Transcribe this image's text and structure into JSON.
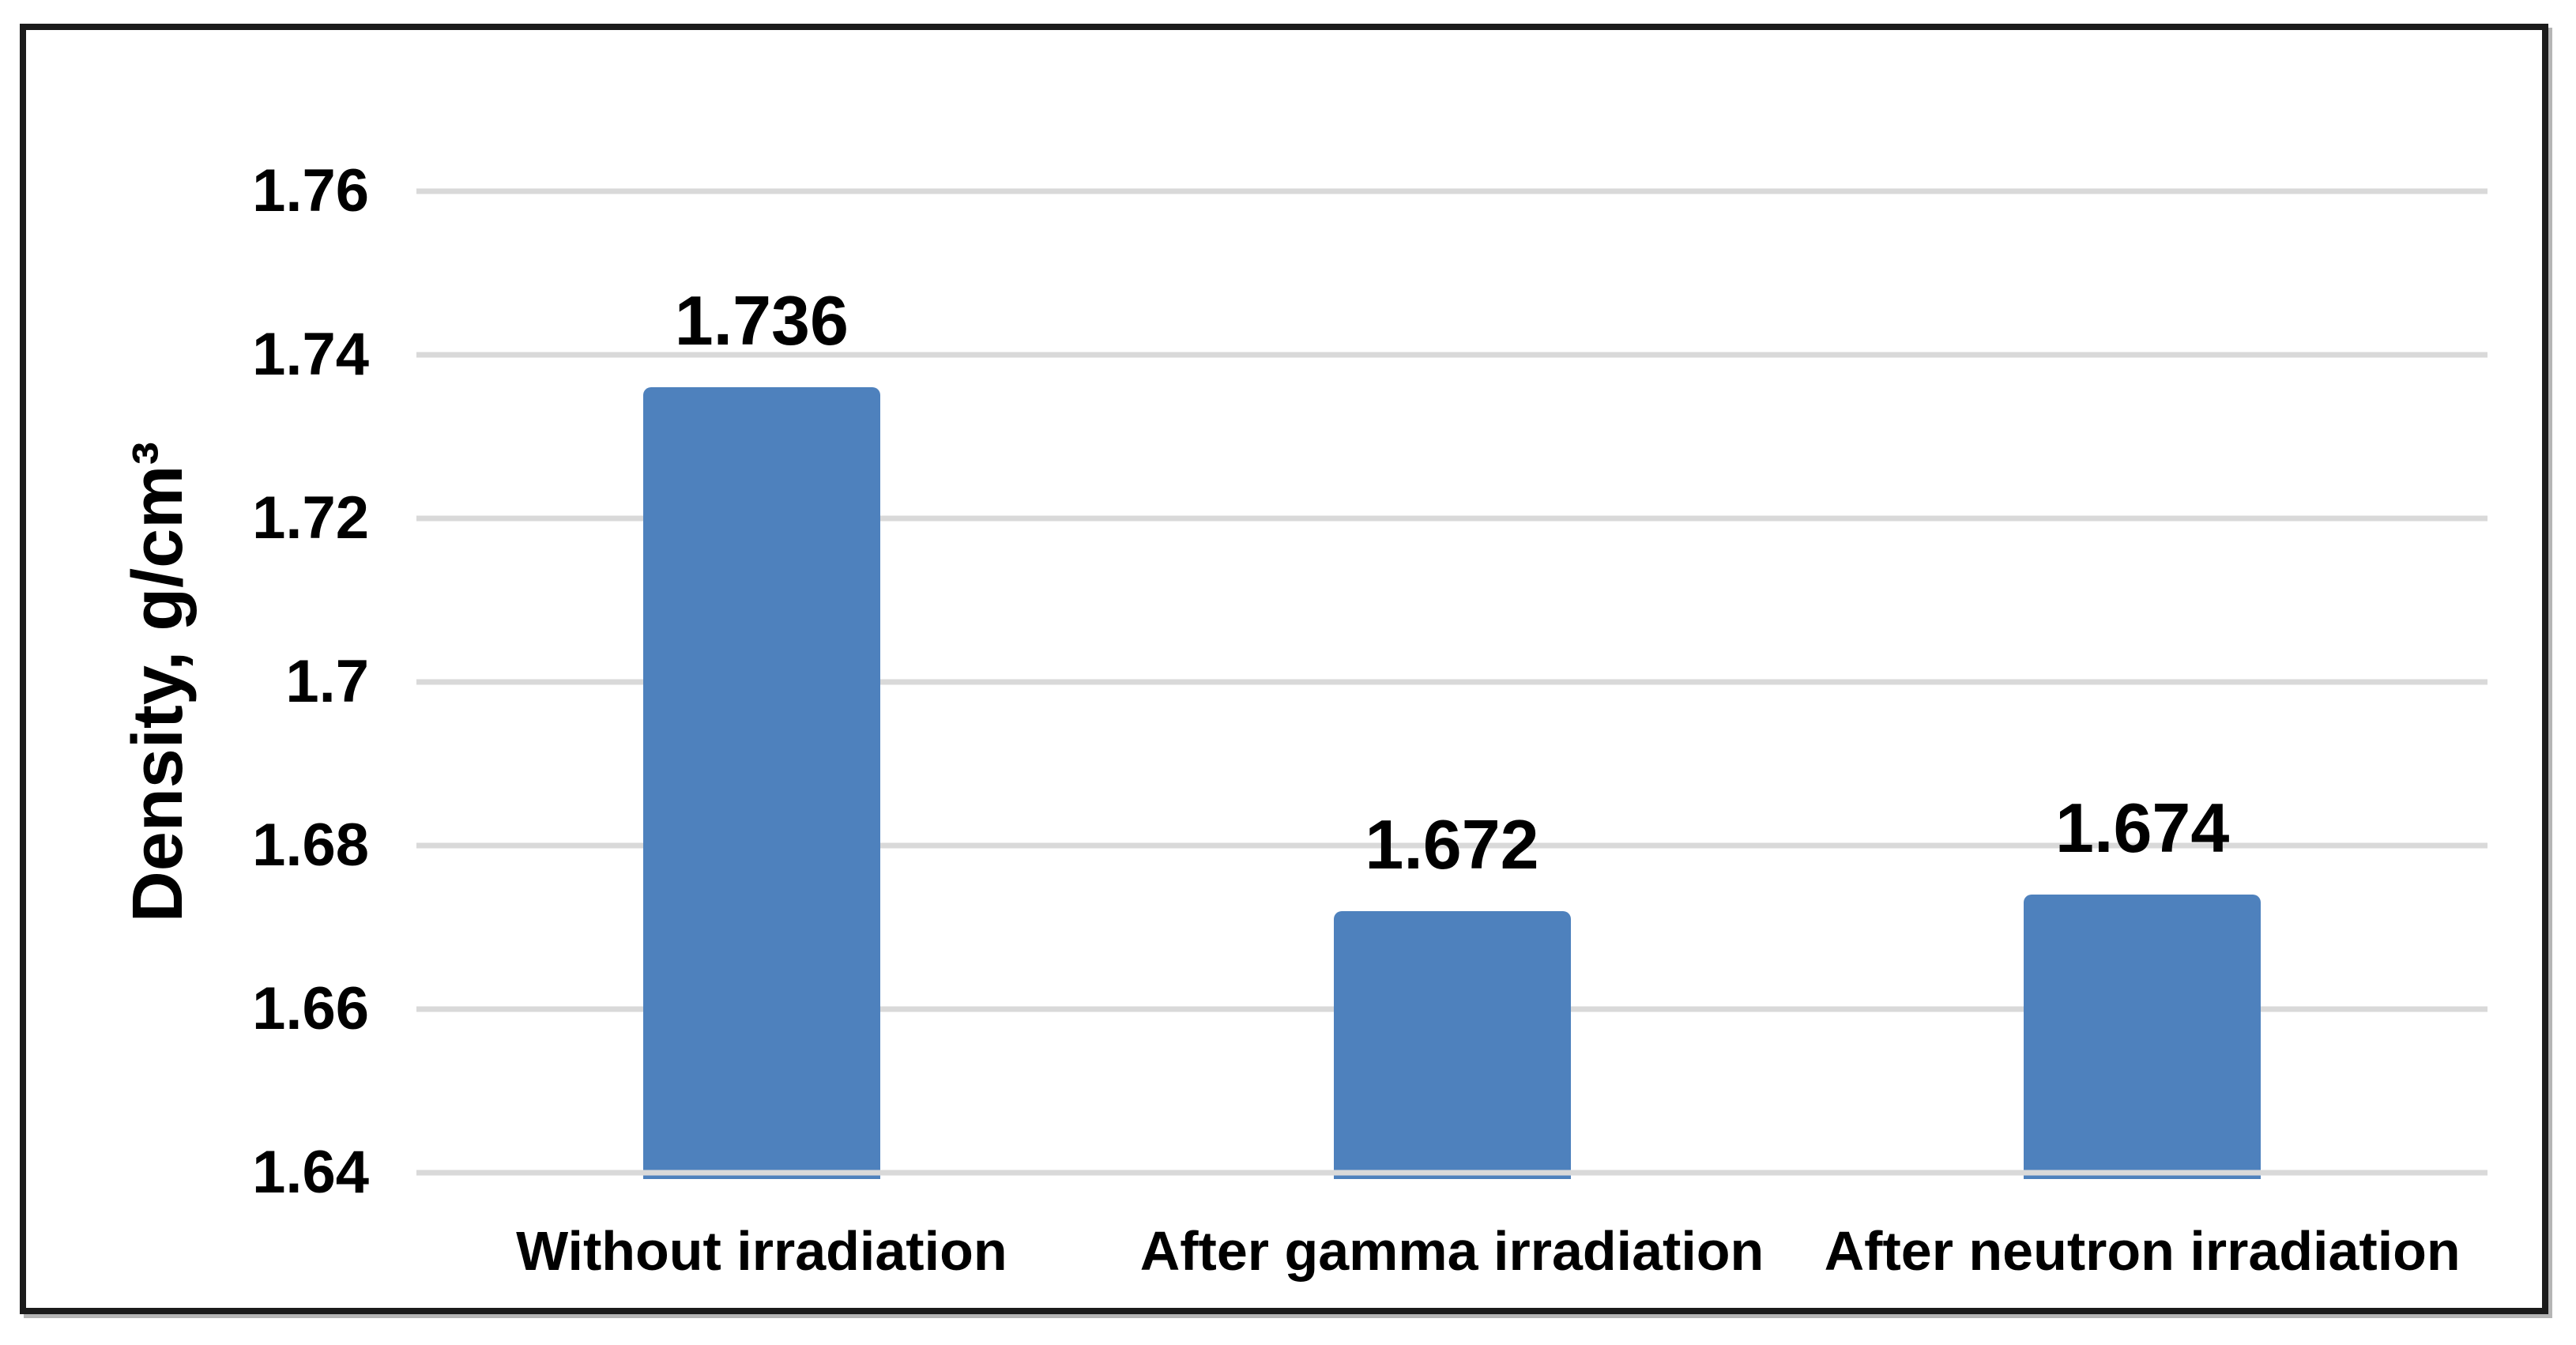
{
  "chart_data": {
    "type": "bar",
    "title": "",
    "categories": [
      "Without irradiation",
      "After gamma irradiation",
      "After neutron irradiation"
    ],
    "values": [
      1.736,
      1.672,
      1.674
    ],
    "data_labels": [
      "1.736",
      "1.672",
      "1.674"
    ],
    "xlabel": "",
    "ylabel": "Density, g/cm³",
    "ylim": [
      1.64,
      1.76
    ],
    "ytick_interval": 0.02,
    "yticks": [
      1.76,
      1.74,
      1.72,
      1.7,
      1.68,
      1.66,
      1.64
    ],
    "ytick_labels": [
      "1.76",
      "1.74",
      "1.72",
      "1.7",
      "1.68",
      "1.66",
      "1.64"
    ],
    "grid": true,
    "grid_orientation": "horizontal",
    "legend": false,
    "bars_per_category": 1,
    "colors": {
      "bar": "#4E81BD",
      "gridline": "#D9D9D9",
      "text": "#000000",
      "frame_border": "#1B1B1B",
      "background": "#FFFFFF"
    }
  }
}
